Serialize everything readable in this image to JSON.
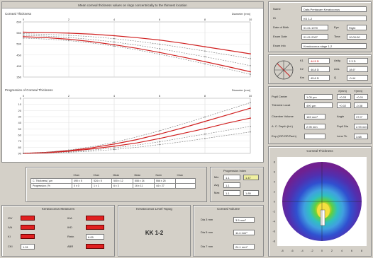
{
  "top_panel": {
    "title": "Mean corneal thickness values on rings concentrically to the thinnest location",
    "upper_chart": {
      "label": "Corneal Thickness",
      "unit": "Diameter [mm]",
      "xticks": [
        "0",
        "2",
        "4",
        "6",
        "8",
        "10"
      ],
      "yticks": [
        "600",
        "550",
        "500",
        "450",
        "400",
        "350"
      ]
    },
    "lower_chart": {
      "label": "Progression of Corneal Thickness",
      "unit": "Diameter [mm]",
      "xticks": [
        "0",
        "2",
        "4",
        "6",
        "8",
        "10"
      ],
      "yticks": [
        "0",
        "10",
        "20",
        "30",
        "40",
        "50",
        "60",
        "70",
        "80",
        "90"
      ]
    }
  },
  "chart_data": [
    {
      "type": "line",
      "title": "Corneal Thickness",
      "xlabel": "Diameter [mm]",
      "x": [
        0,
        1,
        2,
        3,
        4,
        5,
        6,
        7,
        8,
        9,
        10
      ],
      "ylim": [
        340,
        620
      ],
      "series": [
        {
          "values": [
            568,
            566,
            563,
            558,
            550,
            540,
            528,
            512,
            494,
            476,
            458
          ],
          "color": "#d02020"
        },
        {
          "values": [
            560,
            557,
            552,
            545,
            535,
            522,
            507,
            490,
            472,
            453,
            434
          ],
          "color": "#888888"
        },
        {
          "values": [
            552,
            548,
            541,
            531,
            518,
            502,
            484,
            464,
            443,
            421,
            398
          ],
          "color": "#888888"
        },
        {
          "values": [
            545,
            540,
            532,
            520,
            504,
            486,
            465,
            442,
            418,
            393,
            367
          ],
          "color": "#d02020"
        },
        {
          "values": [
            538,
            533,
            525,
            513,
            497,
            478,
            456,
            432,
            407,
            381,
            354
          ],
          "color": "#888888"
        }
      ]
    },
    {
      "type": "line",
      "title": "Progression of Corneal Thickness",
      "xlabel": "Diameter [mm]",
      "x": [
        0,
        1,
        2,
        3,
        4,
        5,
        6,
        7,
        8,
        9,
        10
      ],
      "ylim": [
        0,
        100
      ],
      "series": [
        {
          "values": [
            0,
            1,
            2,
            4,
            7,
            11,
            16,
            21,
            27,
            33,
            39
          ],
          "color": "#888888"
        },
        {
          "values": [
            0,
            1,
            3,
            6,
            10,
            15,
            21,
            28,
            35,
            42,
            49
          ],
          "color": "#888888"
        },
        {
          "values": [
            0,
            1,
            4,
            8,
            13,
            19,
            27,
            36,
            45,
            55,
            64
          ],
          "color": "#d02020"
        },
        {
          "values": [
            0,
            2,
            5,
            10,
            17,
            25,
            35,
            46,
            58,
            70,
            82
          ],
          "color": "#d02020"
        },
        {
          "values": [
            0,
            2,
            6,
            12,
            20,
            30,
            41,
            53,
            66,
            79,
            92
          ],
          "color": "#888888"
        }
      ]
    }
  ],
  "values_table": {
    "headers": [
      "",
      "Chan",
      "Chan",
      "Mean",
      "Mean",
      "Norm",
      "Chan"
    ],
    "rows": [
      [
        "C. Thickness ( µm",
        "490 ± 5",
        "524 ± 5",
        "500 ± 12",
        "508 ± 24",
        "556 ± 25",
        ""
      ],
      [
        "Progression ( %",
        "0 ± 0",
        "1 ± 1",
        "6 ± 3",
        "16 ± 11",
        "44 ± 27",
        ""
      ]
    ]
  },
  "progression_index": {
    "title": "Progression Index",
    "rows": [
      {
        "label": "Min",
        "value": "1.1",
        "extra": "1.47"
      },
      {
        "label": "Avg",
        "value": "1.1",
        "extra": ""
      },
      {
        "label": "Max",
        "value": "1.1",
        "extra": "1.89"
      }
    ]
  },
  "keratoconus_panel": {
    "title": "Keratoconus Measures",
    "left": [
      {
        "label": "ISV",
        "value": ""
      },
      {
        "label": "IVA",
        "value": ""
      },
      {
        "label": "KI",
        "value": ""
      },
      {
        "label": "CKI",
        "value": "1.01"
      }
    ],
    "right": [
      {
        "label": "IHA",
        "value": ""
      },
      {
        "label": "IHD",
        "value": ""
      },
      {
        "label": "Rmin",
        "value": "6.05"
      },
      {
        "label": "ABR",
        "value": ""
      }
    ]
  },
  "topkc_panel": {
    "title": "Keratoconus Level Topog",
    "value": "KK 1-2"
  },
  "corneal_volume_panel": {
    "title": "Corneal Volume",
    "rows": [
      {
        "label": "Dia 3 mm",
        "value": "3.5 mm³"
      },
      {
        "label": "Dia 5 mm",
        "value": "11.4 mm³"
      },
      {
        "label": "Dia 7 mm",
        "value": "24.1 mm³"
      }
    ]
  },
  "patient": {
    "rows": [
      {
        "label": "Name",
        "value": "Data Pentacam Keratoconus"
      },
      {
        "label": "ID",
        "value": "KK 1-2"
      },
      {
        "label": "Date of Birth",
        "value": "01.01.1970",
        "label2": "Eye",
        "value2": "Right"
      },
      {
        "label": "Exam Date",
        "value": "01.01.2007",
        "label2": "Time",
        "value2": "10:00:00"
      },
      {
        "label": "Exam info",
        "value": "Keratoconus stage 1-2"
      }
    ]
  },
  "keratometry": {
    "rows": [
      {
        "label": "K1",
        "value": "44.5 D",
        "label2": "Astig",
        "value2": "2.3 D"
      },
      {
        "label": "K2",
        "value": "46.8 D",
        "label2": "Axis",
        "value2": "18.6°"
      },
      {
        "label": "Km",
        "value": "45.6 D",
        "label2": "Q",
        "value2": "-0.44"
      }
    ]
  },
  "pupil": {
    "headers": [
      "X(mm)",
      "Y(mm)"
    ],
    "rows": [
      {
        "label": "Pupil Center",
        "value": "1.05 µm",
        "x": "+0.03",
        "y": "+0.01"
      },
      {
        "label": "Thinnest Locat",
        "value": "490 µm",
        "x": "+0.02",
        "y": "-0.38"
      },
      {
        "label": "Chamber Volume",
        "value": "169 mm³",
        "label2": "Angle",
        "value2": "37.0°"
      },
      {
        "label": "A. C. Depth (Int.)",
        "value": "2.95 mm",
        "label2": "Pupil Dia",
        "value2": "2.93 mm"
      },
      {
        "label": "Enp (IOP/OP/Pach)",
        "value": "",
        "label2": "Lens Th",
        "value2": "3.68"
      }
    ]
  },
  "thickness_map": {
    "title": "Corneal Thickness",
    "xticks": [
      "-8",
      "-6",
      "-4",
      "-2",
      "0",
      "2",
      "4",
      "6",
      "8"
    ],
    "yticks": [
      "8",
      "6",
      "4",
      "2",
      "0",
      "-2",
      "-4",
      "-6",
      "-8"
    ]
  },
  "colors": {
    "red": "#d02020",
    "gray": "#888888",
    "panel": "#d4d0c8"
  }
}
